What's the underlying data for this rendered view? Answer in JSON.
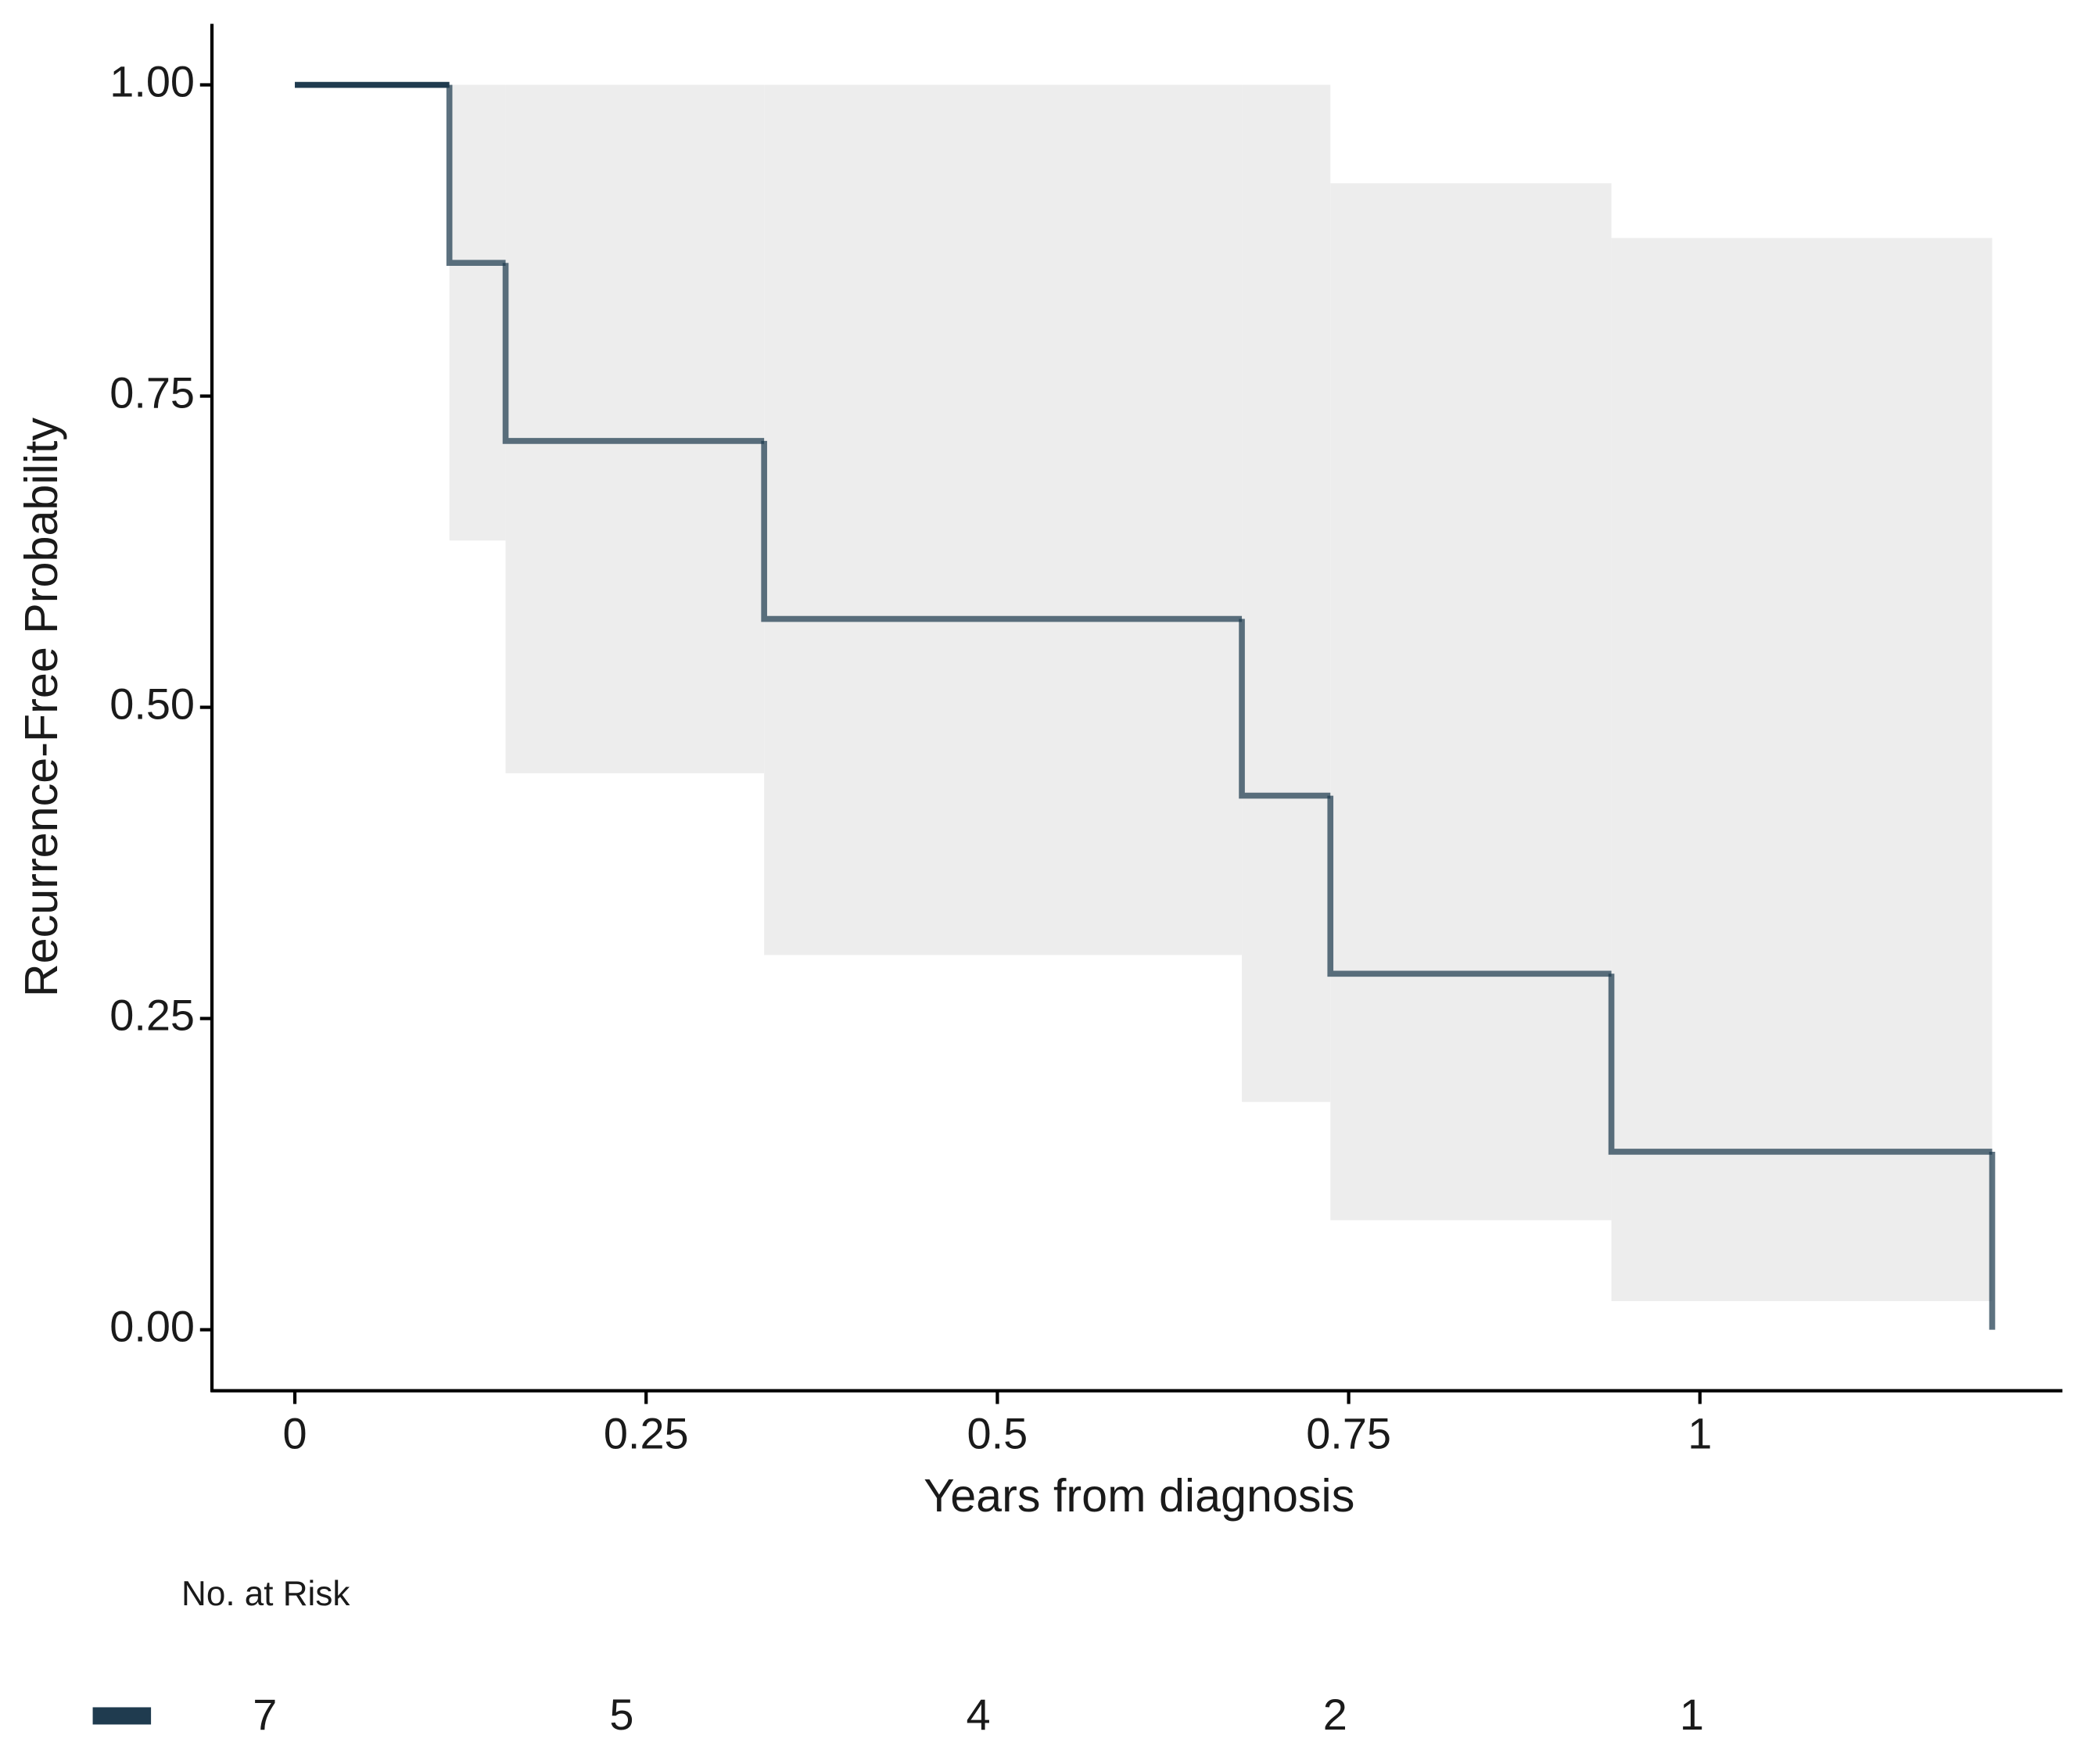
{
  "chart_data": {
    "type": "step",
    "xlabel": "Years from diagnosis",
    "ylabel": "Recurrence-Free Probability",
    "xlim": [
      -0.059,
      1.258
    ],
    "ylim": [
      -0.049,
      1.049
    ],
    "xticks": [
      0,
      0.25,
      0.5,
      0.75,
      1
    ],
    "yticks": [
      {
        "value": 0,
        "label": "0.00"
      },
      {
        "value": 0.25,
        "label": "0.25"
      },
      {
        "value": 0.5,
        "label": "0.50"
      },
      {
        "value": 0.75,
        "label": "0.75"
      },
      {
        "value": 1,
        "label": "1.00"
      }
    ],
    "grid": false,
    "color": "#1f3b4f",
    "band_color": "#ededed",
    "x": [
      0,
      0.11,
      0.15,
      0.334,
      0.674,
      0.737,
      0.937,
      1.208
    ],
    "values": [
      1,
      0.857,
      0.714,
      0.571,
      0.429,
      0.286,
      0.143,
      0
    ],
    "ci_upper": [
      1,
      1,
      1,
      1,
      1,
      0.921,
      0.877,
      null
    ],
    "ci_lower": [
      1,
      0.634,
      0.447,
      0.301,
      0.183,
      0.088,
      0.023,
      null
    ],
    "risk_table": {
      "title": "No. at Risk",
      "values": [
        7,
        5,
        4,
        2,
        1
      ]
    }
  }
}
